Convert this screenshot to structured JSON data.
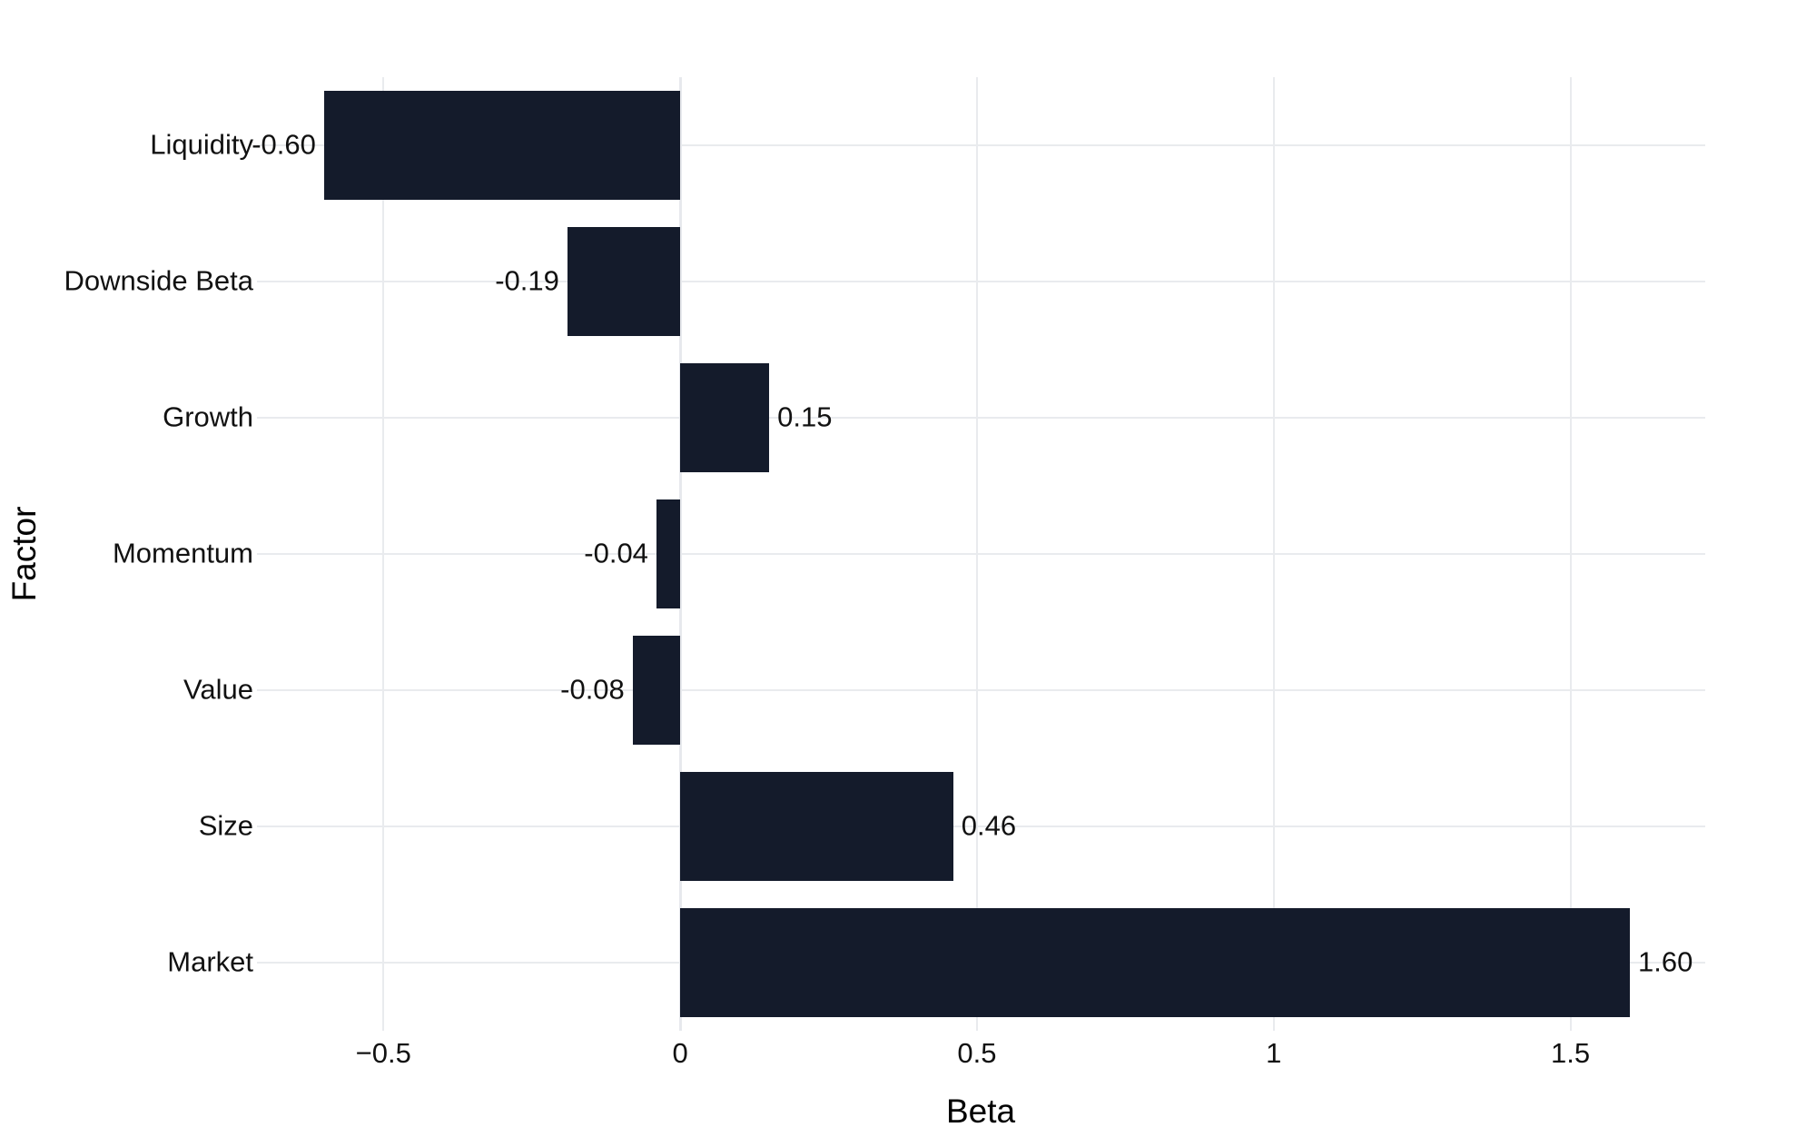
{
  "chart_data": {
    "type": "bar",
    "orientation": "horizontal",
    "title": "",
    "xlabel": "Beta",
    "ylabel": "Factor",
    "categories": [
      "Liquidity",
      "Downside Beta",
      "Growth",
      "Momentum",
      "Value",
      "Size",
      "Market"
    ],
    "values": [
      -0.6,
      -0.19,
      0.15,
      -0.04,
      -0.08,
      0.46,
      1.6
    ],
    "value_labels": [
      "-0.60",
      "-0.19",
      "0.15",
      "-0.04",
      "-0.08",
      "0.46",
      "1.60"
    ],
    "xticks": {
      "values": [
        -0.5,
        0,
        0.5,
        1,
        1.5
      ],
      "labels": [
        "−0.5",
        "0",
        "0.5",
        "1",
        "1.5"
      ]
    },
    "xlim": [
      -0.713,
      1.727
    ],
    "grid": true,
    "legend_shown": false,
    "bar_color": "#141b2b",
    "grid_color": "#e9ebee",
    "zeroline_color": "#e7e9ed",
    "text_color": "#111111",
    "background_color": "#ffffff"
  }
}
